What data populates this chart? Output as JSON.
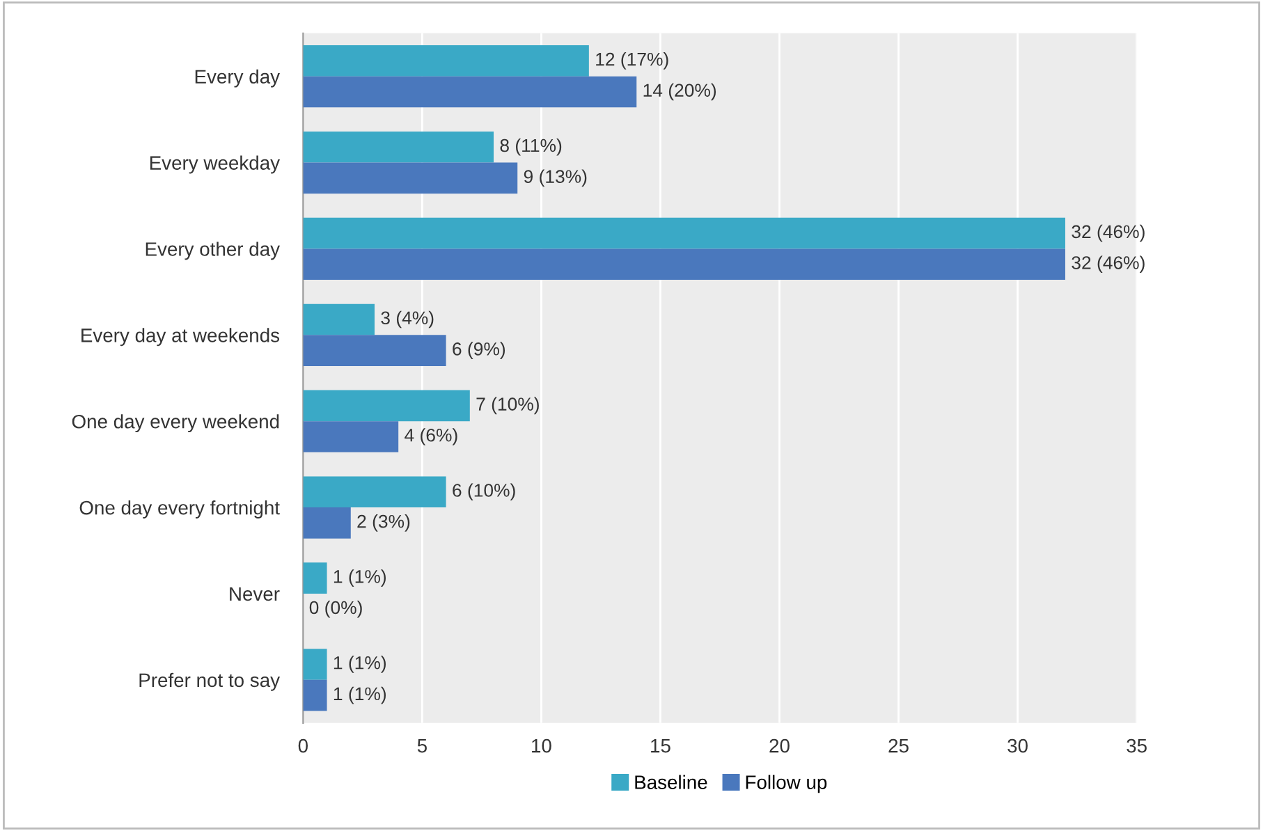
{
  "chart_data": {
    "type": "bar",
    "orientation": "horizontal",
    "categories": [
      "Every day",
      "Every weekday",
      "Every other day",
      "Every day at weekends",
      "One day every weekend",
      "One day every fortnight",
      "Never",
      "Prefer not to say"
    ],
    "series": [
      {
        "name": "Baseline",
        "color": "#3aa9c6",
        "values": [
          12,
          8,
          32,
          3,
          7,
          6,
          1,
          1
        ],
        "value_labels": [
          "12 (17%)",
          "8 (11%)",
          "32 (46%)",
          "3 (4%)",
          "7 (10%)",
          "6 (10%)",
          "1 (1%)",
          "1 (1%)"
        ]
      },
      {
        "name": "Follow up",
        "color": "#4a78bd",
        "values": [
          14,
          9,
          32,
          6,
          4,
          2,
          0,
          1
        ],
        "value_labels": [
          "14 (20%)",
          "9 (13%)",
          "32 (46%)",
          "6 (9%)",
          "4 (6%)",
          "2 (3%)",
          "0 (0%)",
          "1 (1%)"
        ]
      }
    ],
    "xlim": [
      0,
      35
    ],
    "xticks": [
      0,
      5,
      10,
      15,
      20,
      25,
      30,
      35
    ],
    "grid": "x",
    "legend": "bottom"
  }
}
